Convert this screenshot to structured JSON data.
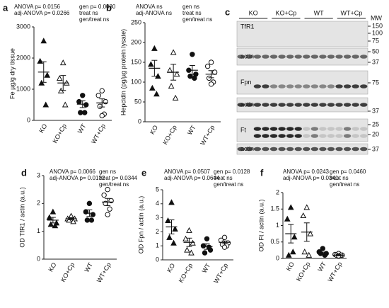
{
  "chart_data": [
    {
      "type": "dot",
      "panel": "a",
      "ylabel": "Fe µg/g dry tissue",
      "stats_left": [
        "ANOVA p= 0.0156",
        "adj-ANOVA p= 0.0266"
      ],
      "stats_right": [
        "gen p= 0.0080",
        "treat ns",
        "gen/treat ns"
      ],
      "categories": [
        "KO",
        "KO+Cp",
        "WT",
        "WT+Cp"
      ],
      "markers": [
        "triangle",
        "triangle-open",
        "circle",
        "circle-open"
      ],
      "points": [
        [
          2550,
          1900,
          1450,
          1200,
          500
        ],
        [
          1850,
          1350,
          1200,
          950,
          500
        ],
        [
          800,
          600,
          500,
          250,
          250
        ],
        [
          950,
          800,
          600,
          450,
          200,
          150
        ]
      ],
      "means": [
        1550,
        1200,
        520,
        560
      ],
      "sems": [
        330,
        240,
        110,
        130
      ],
      "ylim": [
        0,
        3000
      ],
      "yticks": [
        0,
        1000,
        2000,
        3000
      ]
    },
    {
      "type": "dot",
      "panel": "b",
      "ylabel": "Hepcidin (pg/µg protein lysate)",
      "stats_left": [
        "ANOVA ns",
        "adj-ANOVA ns"
      ],
      "stats_right": [
        "gen ns",
        "treat ns",
        "gen/treat ns"
      ],
      "categories": [
        "KO",
        "KO+Cp",
        "WT",
        "WT+Cp"
      ],
      "markers": [
        "triangle",
        "triangle-open",
        "circle",
        "circle-open"
      ],
      "points": [
        [
          185,
          145,
          115,
          85,
          70
        ],
        [
          175,
          130,
          120,
          90,
          60
        ],
        [
          170,
          130,
          120,
          115,
          110
        ],
        [
          150,
          140,
          125,
          110,
          100,
          95
        ]
      ],
      "means": [
        135,
        125,
        130,
        120
      ],
      "sems": [
        20,
        20,
        12,
        9
      ],
      "ylim": [
        0,
        250
      ],
      "yticks": [
        0,
        50,
        100,
        150,
        200,
        250
      ]
    },
    {
      "type": "dot",
      "panel": "d",
      "ylabel": "OD TfR1 / actin (a.u.)",
      "stats_left": [
        "ANOVA p= 0.0066",
        "adj-ANOVA p= 0.0132"
      ],
      "stats_right": [
        "gen  ns",
        "treat  p= 0.0344",
        "gen/treat  ns"
      ],
      "categories": [
        "KO",
        "KO+Cp",
        "WT",
        "WT+Cp"
      ],
      "markers": [
        "triangle",
        "triangle-open",
        "circle",
        "circle-open"
      ],
      "points": [
        [
          1.7,
          1.5,
          1.3,
          1.25,
          1.2
        ],
        [
          1.55,
          1.45,
          1.45,
          1.4,
          1.35
        ],
        [
          2.0,
          1.7,
          1.6,
          1.4,
          1.4
        ],
        [
          2.5,
          2.3,
          2.1,
          2.0,
          1.8,
          1.6
        ]
      ],
      "means": [
        1.4,
        1.45,
        1.65,
        2.05
      ],
      "sems": [
        0.1,
        0.04,
        0.12,
        0.13
      ],
      "ylim": [
        0,
        3
      ],
      "yticks": [
        0,
        1,
        2,
        3
      ]
    },
    {
      "type": "dot",
      "panel": "e",
      "ylabel": "OD Fpn / actin (a.u.)",
      "stats_left": [
        "ANOVA p= 0.0507",
        "adj-ANOVA p= 0.0644"
      ],
      "stats_right": [
        "gen p= 0.0128",
        "treat  ns",
        "gen/treat  ns"
      ],
      "categories": [
        "KO",
        "KO+Cp",
        "WT",
        "WT+Cp"
      ],
      "markers": [
        "triangle",
        "triangle-open",
        "circle",
        "circle-open"
      ],
      "points": [
        [
          4.1,
          2.8,
          2.2,
          1.6,
          1.2
        ],
        [
          2.1,
          1.5,
          1.2,
          0.7,
          0.5
        ],
        [
          1.5,
          1.0,
          0.7,
          0.5,
          0.9
        ],
        [
          1.6,
          1.4,
          1.2,
          1.1,
          1.0,
          0.9
        ]
      ],
      "means": [
        2.35,
        1.25,
        0.95,
        1.25
      ],
      "sems": [
        0.5,
        0.3,
        0.2,
        0.1
      ],
      "ylim": [
        0,
        5
      ],
      "yticks": [
        0,
        1,
        2,
        3,
        4,
        5
      ]
    },
    {
      "type": "dot",
      "panel": "f",
      "ylabel": "OD Ft / actin (a.u.)",
      "stats_left": [
        "ANOVA p= 0.0243",
        "adj-ANOVA p= 0.0341"
      ],
      "stats_right": [
        "gen p= 0.0460",
        "treat  ns",
        "gen/treat  ns"
      ],
      "categories": [
        "KO",
        "KO+Cp",
        "WT",
        "WT+Cp"
      ],
      "markers": [
        "triangle",
        "triangle-open",
        "circle",
        "circle-open"
      ],
      "points": [
        [
          1.55,
          1.2,
          0.65,
          0.1,
          0.2
        ],
        [
          1.55,
          1.3,
          0.75,
          0.2,
          0.1
        ],
        [
          0.3,
          0.2,
          0.15,
          0.15,
          0.1
        ],
        [
          0.15,
          0.12,
          0.1,
          0.1,
          0.1,
          0.08
        ]
      ],
      "means": [
        0.75,
        0.8,
        0.15,
        0.1
      ],
      "sems": [
        0.28,
        0.28,
        0.04,
        0.02
      ],
      "ylim": [
        0,
        2
      ],
      "yticks": [
        0,
        0.5,
        1,
        1.5,
        2
      ]
    }
  ],
  "blot": {
    "panel": "c",
    "groups": [
      "KO",
      "KO+Cp",
      "WT",
      "WT+Cp"
    ],
    "rows": [
      "TfR1",
      "actin",
      "Fpn",
      "actin",
      "Ft",
      "actin"
    ],
    "mw_title": "MW",
    "mw": [
      150,
      100,
      75,
      50,
      37,
      75,
      37,
      25,
      20,
      37
    ]
  }
}
